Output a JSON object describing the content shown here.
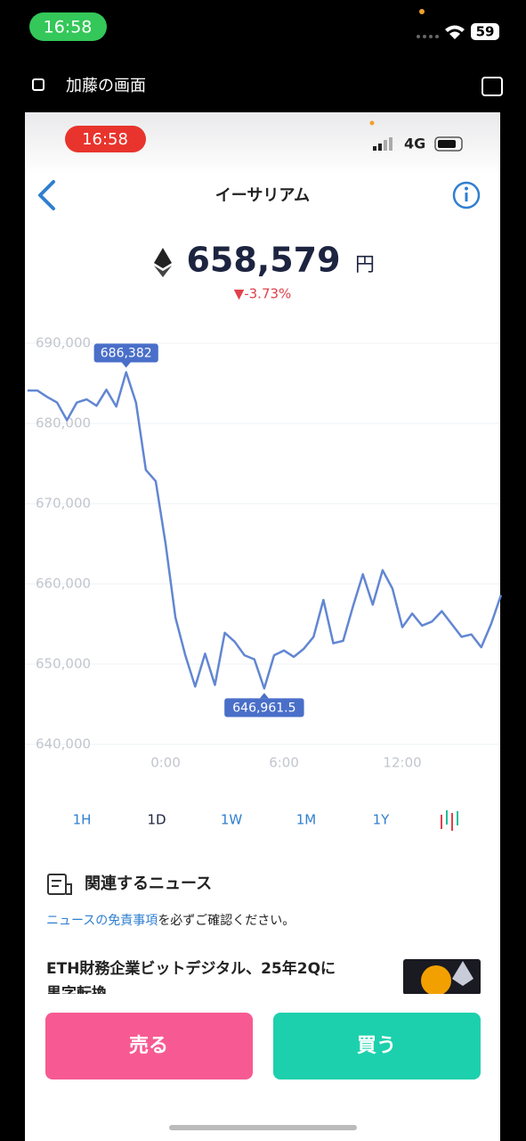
{
  "status": {
    "time": "16:58",
    "battery": "59"
  },
  "share": {
    "label": "加藤の画面"
  },
  "inner_status": {
    "time": "16:58",
    "network": "4G"
  },
  "header": {
    "title": "イーサリアム"
  },
  "price": {
    "value": "658,579",
    "unit": "円",
    "change": "▼-3.73%"
  },
  "chart_data": {
    "type": "line",
    "x": [
      -7,
      -6.5,
      -6,
      -5.5,
      -5,
      -4.5,
      -4,
      -3.5,
      -3,
      -2.5,
      -2,
      -1.5,
      -1,
      -0.5,
      0,
      0.5,
      1,
      1.5,
      2,
      2.5,
      3,
      3.5,
      4,
      4.5,
      5,
      5.5,
      6,
      6.5,
      7,
      7.5,
      8,
      8.5,
      9,
      9.5,
      10,
      10.5,
      11,
      11.5,
      12,
      12.5,
      13,
      13.5,
      14,
      14.5,
      15,
      15.5,
      16,
      16.5,
      17
    ],
    "series": [
      {
        "name": "ETH",
        "color": "#6286d2",
        "values": [
          684100,
          684100,
          683300,
          682600,
          680400,
          682600,
          683000,
          682200,
          684200,
          682100,
          686382,
          682600,
          674200,
          672800,
          665000,
          655800,
          651100,
          647200,
          651300,
          647400,
          653900,
          652800,
          651100,
          650600,
          646961.5,
          651100,
          651700,
          650900,
          651900,
          653400,
          658000,
          652600,
          652900,
          657200,
          661200,
          657400,
          661700,
          659400,
          654600,
          656300,
          654800,
          655300,
          656600,
          655000,
          653400,
          653700,
          652100,
          655000,
          658600
        ]
      }
    ],
    "value_labels": [
      null,
      null,
      null,
      null,
      null,
      null,
      null,
      null,
      null,
      null,
      "686,382",
      null,
      null,
      null,
      null,
      null,
      null,
      null,
      null,
      null,
      null,
      null,
      null,
      null,
      "646,961.5",
      null,
      null,
      null,
      null,
      null,
      null,
      null,
      null,
      null,
      null,
      null,
      null,
      null,
      null,
      null,
      null,
      null,
      null,
      null,
      null,
      null,
      null,
      null,
      null
    ],
    "xlim": [
      -7.13,
      16.96
    ],
    "ylim": [
      640000,
      690000
    ],
    "xticks": [
      {
        "value": 0,
        "label": "0:00"
      },
      {
        "value": 6,
        "label": "6:00"
      },
      {
        "value": 12,
        "label": "12:00"
      }
    ],
    "yticks": [
      {
        "value": 640000,
        "label": "640,000"
      },
      {
        "value": 650000,
        "label": "650,000"
      },
      {
        "value": 660000,
        "label": "660,000"
      },
      {
        "value": 670000,
        "label": "670,000"
      },
      {
        "value": 680000,
        "label": "680,000"
      },
      {
        "value": 690000,
        "label": "690,000"
      }
    ],
    "grid": true
  },
  "ranges": [
    "1H",
    "1D",
    "1W",
    "1M",
    "1Y"
  ],
  "news": {
    "heading": "関連するニュース",
    "disclaimer_link": "ニュースの免責事項",
    "disclaimer_text": "を必ずご確認ください。",
    "headline": "ETH財務企業ビットデジタル、25年2Qに",
    "headline_cont": "黒字転換"
  },
  "actions": {
    "sell": "売る",
    "buy": "買う"
  }
}
